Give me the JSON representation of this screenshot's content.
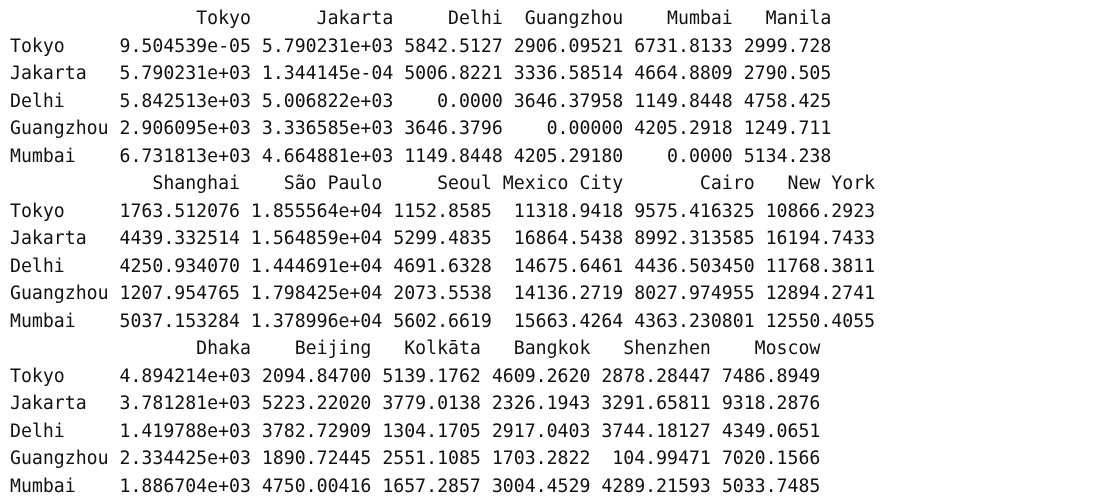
{
  "row_labels": [
    "Tokyo",
    "Jakarta",
    "Delhi",
    "Guangzhou",
    "Mumbai"
  ],
  "blocks": [
    {
      "columns": [
        "Tokyo",
        "Jakarta",
        "Delhi",
        "Guangzhou",
        "Mumbai",
        "Manila"
      ],
      "rows": [
        [
          "9.504539e-05",
          "5.790231e+03",
          "5842.5127",
          "2906.09521",
          "6731.8133",
          "2999.728"
        ],
        [
          "5.790231e+03",
          "1.344145e-04",
          "5006.8221",
          "3336.58514",
          "4664.8809",
          "2790.505"
        ],
        [
          "5.842513e+03",
          "5.006822e+03",
          "0.0000",
          "3646.37958",
          "1149.8448",
          "4758.425"
        ],
        [
          "2.906095e+03",
          "3.336585e+03",
          "3646.3796",
          "0.00000",
          "4205.2918",
          "1249.711"
        ],
        [
          "6.731813e+03",
          "4.664881e+03",
          "1149.8448",
          "4205.29180",
          "0.0000",
          "5134.238"
        ]
      ]
    },
    {
      "columns": [
        "Shanghai",
        "São Paulo",
        "Seoul",
        "Mexico City",
        "Cairo",
        "New York"
      ],
      "rows": [
        [
          "1763.512076",
          "1.855564e+04",
          "1152.8585",
          "11318.9418",
          "9575.416325",
          "10866.2923"
        ],
        [
          "4439.332514",
          "1.564859e+04",
          "5299.4835",
          "16864.5438",
          "8992.313585",
          "16194.7433"
        ],
        [
          "4250.934070",
          "1.444691e+04",
          "4691.6328",
          "14675.6461",
          "4436.503450",
          "11768.3811"
        ],
        [
          "1207.954765",
          "1.798425e+04",
          "2073.5538",
          "14136.2719",
          "8027.974955",
          "12894.2741"
        ],
        [
          "5037.153284",
          "1.378996e+04",
          "5602.6619",
          "15663.4264",
          "4363.230801",
          "12550.4055"
        ]
      ]
    },
    {
      "columns": [
        "Dhaka",
        "Beijing",
        "Kolkāta",
        "Bangkok",
        "Shenzhen",
        "Moscow"
      ],
      "rows": [
        [
          "4.894214e+03",
          "2094.84700",
          "5139.1762",
          "4609.2620",
          "2878.28447",
          "7486.8949"
        ],
        [
          "3.781281e+03",
          "5223.22020",
          "3779.0138",
          "2326.1943",
          "3291.65811",
          "9318.2876"
        ],
        [
          "1.419788e+03",
          "3782.72909",
          "1304.1705",
          "2917.0403",
          "3744.18127",
          "4349.0651"
        ],
        [
          "2.334425e+03",
          "1890.72445",
          "2551.1085",
          "1703.2822",
          "104.99471",
          "7020.1566"
        ],
        [
          "1.886704e+03",
          "4750.00416",
          "1657.2857",
          "3004.4529",
          "4289.21593",
          "5033.7485"
        ]
      ]
    }
  ]
}
